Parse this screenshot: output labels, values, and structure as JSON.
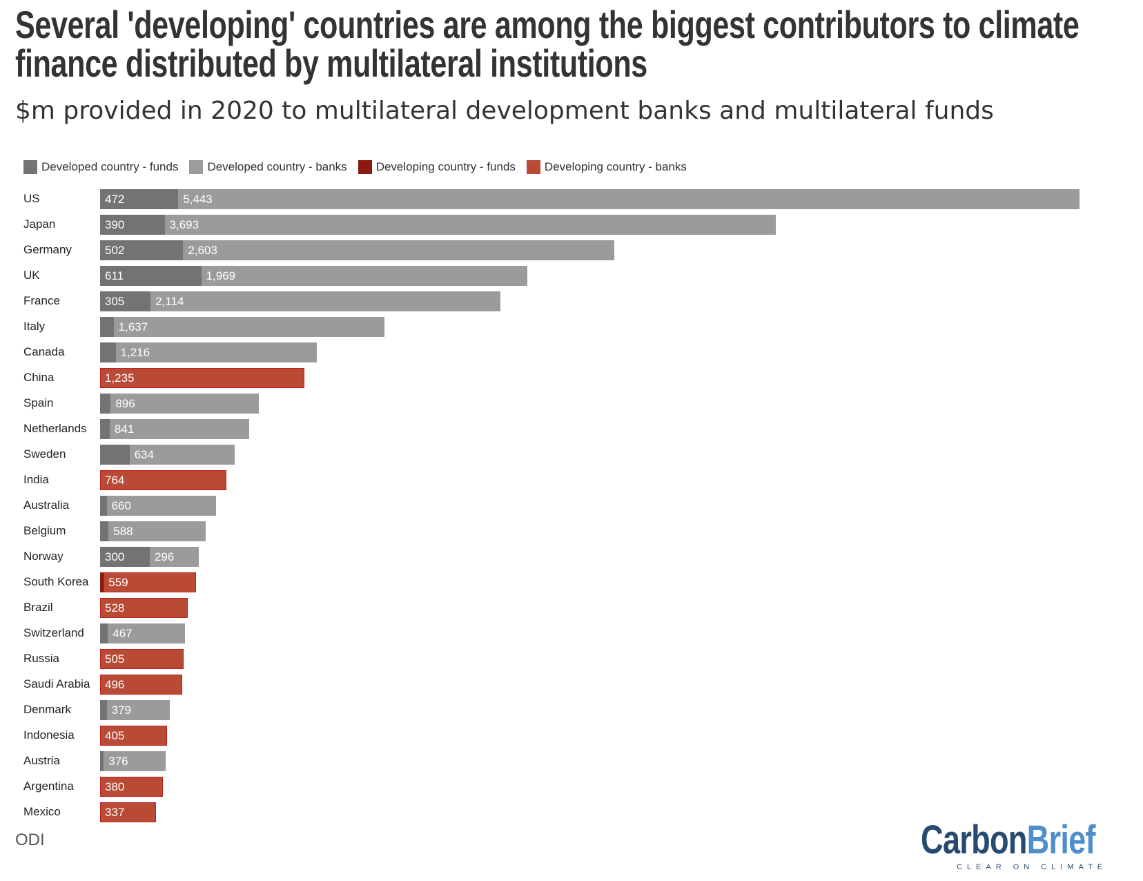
{
  "chart_data": {
    "type": "bar",
    "orientation": "horizontal-stacked",
    "title": "Several 'developing' countries are among the biggest contributors to climate finance distributed by multilateral institutions",
    "subtitle": "$m provided in 2020 to multilateral development banks and multilateral funds",
    "legend": [
      {
        "name": "Developed country - funds",
        "color": "#737373"
      },
      {
        "name": "Developed country - banks",
        "color": "#9b9b9b"
      },
      {
        "name": "Developing country - funds",
        "color": "#8b1a10"
      },
      {
        "name": "Developing country - banks",
        "color": "#b84a36"
      }
    ],
    "legend_position": "top-left",
    "grid": false,
    "rows": [
      {
        "country": "US",
        "group": "developed",
        "funds": 472,
        "banks": 5443,
        "funds_label": "472",
        "banks_label": "5,443"
      },
      {
        "country": "Japan",
        "group": "developed",
        "funds": 390,
        "banks": 3693,
        "funds_label": "390",
        "banks_label": "3,693"
      },
      {
        "country": "Germany",
        "group": "developed",
        "funds": 502,
        "banks": 2603,
        "funds_label": "502",
        "banks_label": "2,603"
      },
      {
        "country": "UK",
        "group": "developed",
        "funds": 611,
        "banks": 1969,
        "funds_label": "611",
        "banks_label": "1,969"
      },
      {
        "country": "France",
        "group": "developed",
        "funds": 305,
        "banks": 2114,
        "funds_label": "305",
        "banks_label": "2,114"
      },
      {
        "country": "Italy",
        "group": "developed",
        "funds": 82,
        "banks": 1637,
        "funds_label": "",
        "banks_label": "1,637"
      },
      {
        "country": "Canada",
        "group": "developed",
        "funds": 94,
        "banks": 1216,
        "funds_label": "",
        "banks_label": "1,216"
      },
      {
        "country": "China",
        "group": "developing",
        "funds": 0,
        "banks": 1235,
        "funds_label": "",
        "banks_label": "1,235"
      },
      {
        "country": "Spain",
        "group": "developed",
        "funds": 64,
        "banks": 896,
        "funds_label": "",
        "banks_label": "896"
      },
      {
        "country": "Netherlands",
        "group": "developed",
        "funds": 58,
        "banks": 841,
        "funds_label": "",
        "banks_label": "841"
      },
      {
        "country": "Sweden",
        "group": "developed",
        "funds": 178,
        "banks": 634,
        "funds_label": "",
        "banks_label": "634"
      },
      {
        "country": "India",
        "group": "developing",
        "funds": 0,
        "banks": 764,
        "funds_label": "",
        "banks_label": "764"
      },
      {
        "country": "Australia",
        "group": "developed",
        "funds": 40,
        "banks": 660,
        "funds_label": "",
        "banks_label": "660"
      },
      {
        "country": "Belgium",
        "group": "developed",
        "funds": 51,
        "banks": 588,
        "funds_label": "",
        "banks_label": "588"
      },
      {
        "country": "Norway",
        "group": "developed",
        "funds": 300,
        "banks": 296,
        "funds_label": "300",
        "banks_label": "296"
      },
      {
        "country": "South Korea",
        "group": "developing",
        "funds": 22,
        "banks": 559,
        "funds_label": "",
        "banks_label": "559"
      },
      {
        "country": "Brazil",
        "group": "developing",
        "funds": 0,
        "banks": 528,
        "funds_label": "",
        "banks_label": "528"
      },
      {
        "country": "Switzerland",
        "group": "developed",
        "funds": 47,
        "banks": 467,
        "funds_label": "",
        "banks_label": "467"
      },
      {
        "country": "Russia",
        "group": "developing",
        "funds": 0,
        "banks": 505,
        "funds_label": "",
        "banks_label": "505"
      },
      {
        "country": "Saudi Arabia",
        "group": "developing",
        "funds": 0,
        "banks": 496,
        "funds_label": "",
        "banks_label": "496"
      },
      {
        "country": "Denmark",
        "group": "developed",
        "funds": 40,
        "banks": 379,
        "funds_label": "",
        "banks_label": "379"
      },
      {
        "country": "Indonesia",
        "group": "developing",
        "funds": 0,
        "banks": 405,
        "funds_label": "",
        "banks_label": "405"
      },
      {
        "country": "Austria",
        "group": "developed",
        "funds": 22,
        "banks": 376,
        "funds_label": "",
        "banks_label": "376"
      },
      {
        "country": "Argentina",
        "group": "developing",
        "funds": 0,
        "banks": 380,
        "funds_label": "",
        "banks_label": "380"
      },
      {
        "country": "Mexico",
        "group": "developing",
        "funds": 0,
        "banks": 337,
        "funds_label": "",
        "banks_label": "337"
      }
    ],
    "xlim": [
      0,
      5915
    ]
  },
  "source": "ODI",
  "logo": {
    "part1": "Carbon",
    "part2": "Brief",
    "tagline": "CLEAR ON CLIMATE"
  }
}
